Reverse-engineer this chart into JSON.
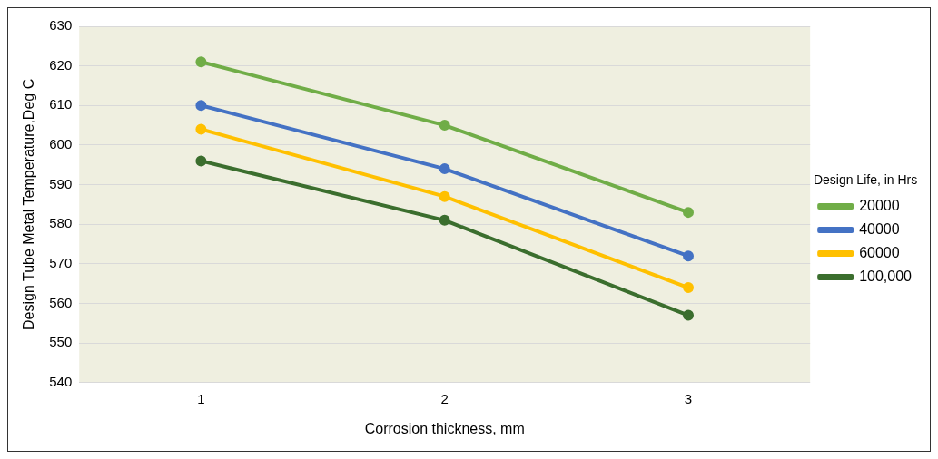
{
  "chart_data": {
    "type": "line",
    "xlabel": "Corrosion thickness, mm",
    "ylabel": "Design Tube Metal Temperature,Deg C",
    "legend_title": "Design Life, in Hrs",
    "categories": [
      "1",
      "2",
      "3"
    ],
    "series": [
      {
        "name": "20000",
        "color": "#70ad47",
        "values": [
          621,
          605,
          583
        ]
      },
      {
        "name": "40000",
        "color": "#4472c4",
        "values": [
          610,
          594,
          572
        ]
      },
      {
        "name": "60000",
        "color": "#ffc000",
        "values": [
          604,
          587,
          564
        ]
      },
      {
        "name": "100,000",
        "color": "#3b6e2e",
        "values": [
          596,
          581,
          557
        ]
      }
    ],
    "ylim": [
      540,
      630
    ],
    "yticks": [
      540,
      550,
      560,
      570,
      580,
      590,
      600,
      610,
      620,
      630
    ],
    "grid": "y",
    "legend": "right",
    "marker": "circle",
    "line_style": "solid"
  }
}
